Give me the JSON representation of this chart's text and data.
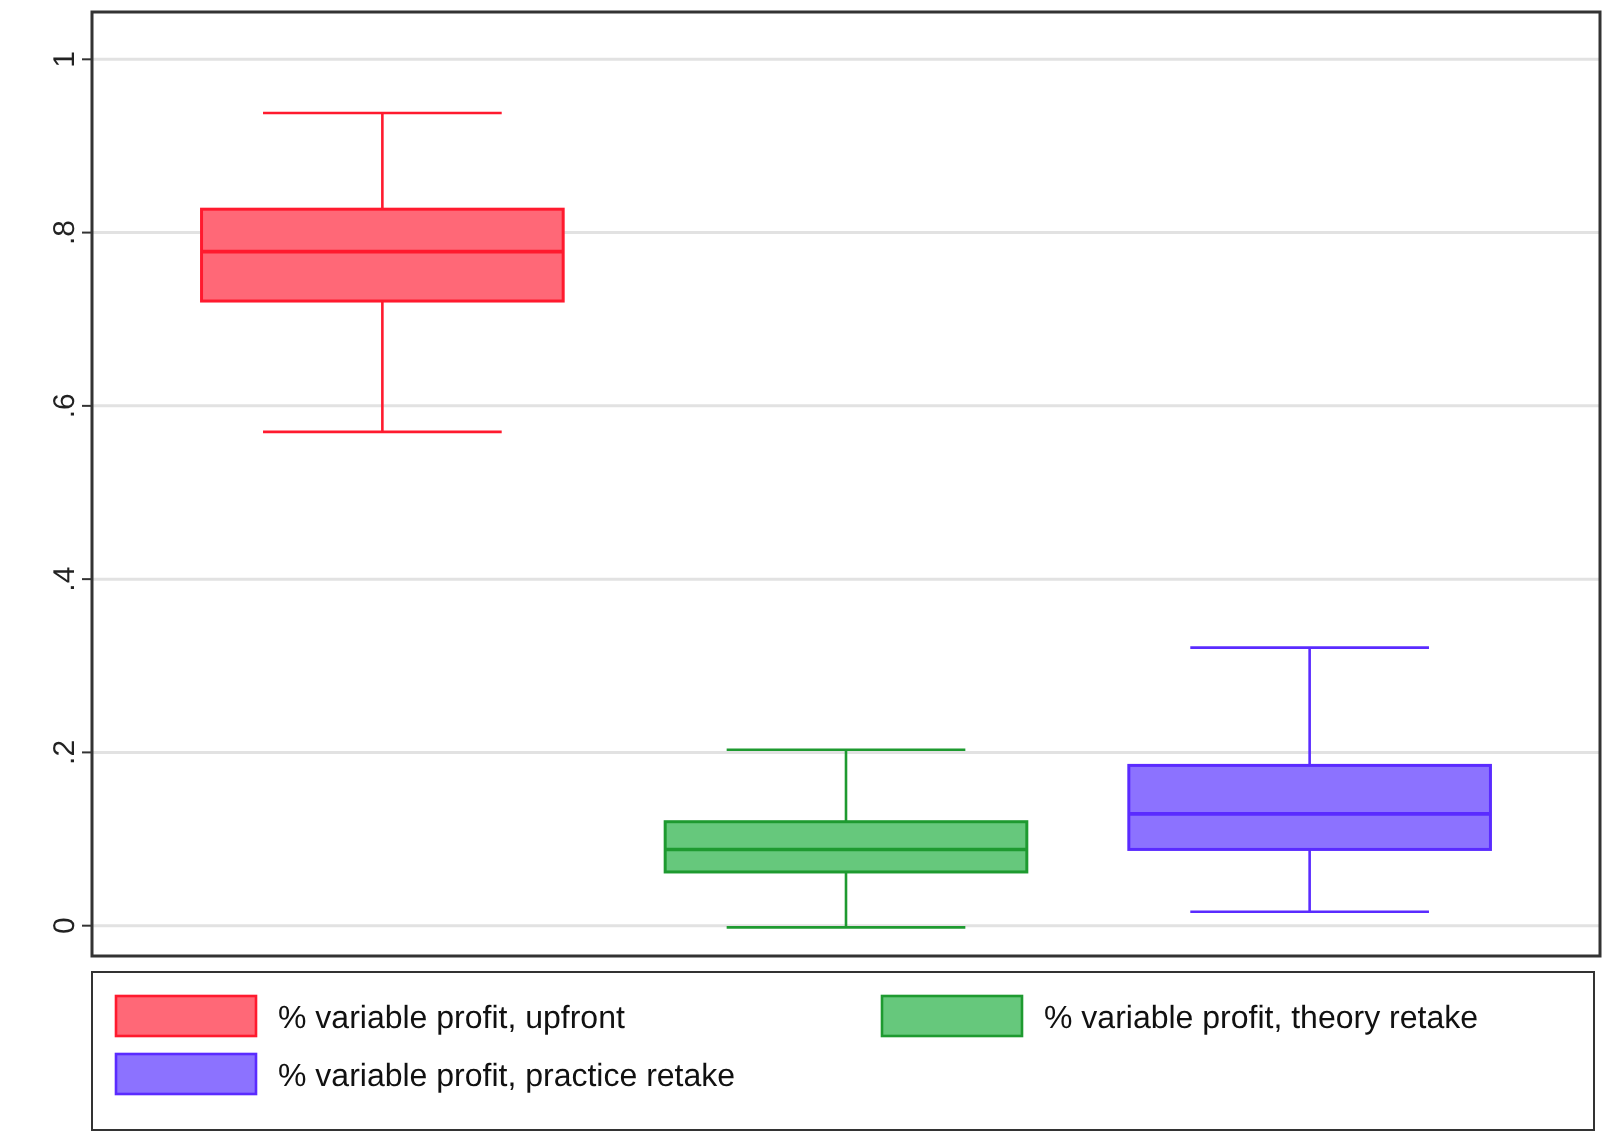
{
  "chart_data": {
    "type": "box",
    "categories": [
      null,
      null,
      null
    ],
    "series": [
      {
        "name": "% variable profit, upfront",
        "color": "#ff6877",
        "boxes": [
          {
            "low": 0.57,
            "q1": 0.721,
            "median": 0.778,
            "q3": 0.827,
            "high": 0.938
          },
          null,
          null
        ]
      },
      {
        "name": "% variable profit, theory retake",
        "color": "#66c87c",
        "boxes": [
          null,
          {
            "low": -0.002,
            "q1": 0.062,
            "median": 0.088,
            "q3": 0.12,
            "high": 0.203
          },
          null
        ]
      },
      {
        "name": "% variable profit, practice retake",
        "color": "#8c72ff",
        "boxes": [
          null,
          null,
          {
            "low": 0.016,
            "q1": 0.088,
            "median": 0.129,
            "q3": 0.185,
            "high": 0.321
          }
        ]
      }
    ],
    "ylim": [
      -0.035,
      1.05
    ],
    "yticks": [
      {
        "value": 0,
        "label": "0"
      },
      {
        "value": 0.2,
        "label": ".2"
      },
      {
        "value": 0.4,
        "label": ".4"
      },
      {
        "value": 0.6,
        "label": ".6"
      },
      {
        "value": 0.8,
        "label": ".8"
      },
      {
        "value": 1,
        "label": "1"
      }
    ],
    "grid": "y",
    "legend": "bottom"
  }
}
